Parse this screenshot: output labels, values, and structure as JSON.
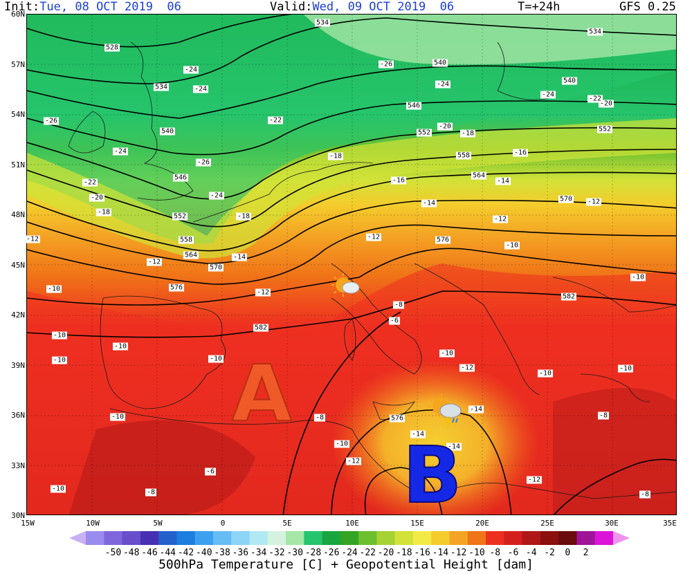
{
  "header": {
    "init_label": "Init:",
    "init_value": "Tue, 08 OCT 2019  06",
    "valid_label": "Valid:",
    "valid_value": "Wed, 09 OCT 2019  06",
    "step": "T=+24h",
    "model": "GFS 0.25"
  },
  "latitude_labels": [
    "60N",
    "57N",
    "54N",
    "51N",
    "48N",
    "45N",
    "42N",
    "39N",
    "36N",
    "33N",
    "30N"
  ],
  "longitude_labels": [
    "15W",
    "10W",
    "5W",
    "0",
    "5E",
    "10E",
    "15E",
    "20E",
    "25E",
    "30E",
    "35E"
  ],
  "temperature_labels": [
    "-26",
    "-24",
    "-24",
    "-24",
    "-24",
    "-22",
    "-22",
    "-26",
    "-24",
    "-24",
    "-26",
    "-20",
    "-18",
    "-18",
    "-16",
    "-14",
    "-14",
    "-20",
    "-18",
    "-18",
    "-16",
    "-14",
    "-12",
    "-12",
    "-12",
    "-12",
    "-10",
    "-10",
    "-10",
    "-12",
    "-8",
    "-6",
    "-10",
    "-10",
    "-10",
    "-10",
    "-10",
    "-12",
    "-10",
    "-10",
    "-8",
    "-8",
    "-14",
    "-14",
    "-14",
    "-12",
    "-10",
    "-6",
    "-8",
    "-8",
    "-12",
    "-20",
    "-22",
    "-12",
    "-10",
    "-10"
  ],
  "height_labels": [
    "528",
    "534",
    "534",
    "540",
    "540",
    "546",
    "546",
    "552",
    "552",
    "558",
    "558",
    "564",
    "564",
    "570",
    "570",
    "576",
    "576",
    "582",
    "582",
    "576",
    "552",
    "540",
    "534"
  ],
  "pressure_systems": {
    "high": "A",
    "low": "B"
  },
  "colorbar": {
    "ticks": [
      "-50",
      "-48",
      "-46",
      "-44",
      "-42",
      "-40",
      "-38",
      "-36",
      "-34",
      "-32",
      "-30",
      "-28",
      "-26",
      "-24",
      "-22",
      "-20",
      "-18",
      "-16",
      "-14",
      "-12",
      "-10",
      "-8",
      "-6",
      "-4",
      "-2",
      "0",
      "2"
    ],
    "colors": [
      "#9a8cee",
      "#8066dc",
      "#6a4fcc",
      "#4830b4",
      "#2460cc",
      "#1e7ee0",
      "#3ca0ee",
      "#66bcf4",
      "#8cd4f8",
      "#b0e8f4",
      "#d4f2de",
      "#a6e6a6",
      "#26c46c",
      "#18a640",
      "#34a424",
      "#6cc030",
      "#a6d236",
      "#d2e238",
      "#f4ea46",
      "#f4cc2c",
      "#f4a424",
      "#f07418",
      "#ee3020",
      "#d4201c",
      "#b01818",
      "#8c1010",
      "#6a0c0c",
      "#a01498",
      "#dc14d8"
    ],
    "low_color": "#c8b0f4",
    "high_color": "#ee94ee"
  },
  "footer": "500hPa Temperature [C] + Geopotential Height [dam]"
}
